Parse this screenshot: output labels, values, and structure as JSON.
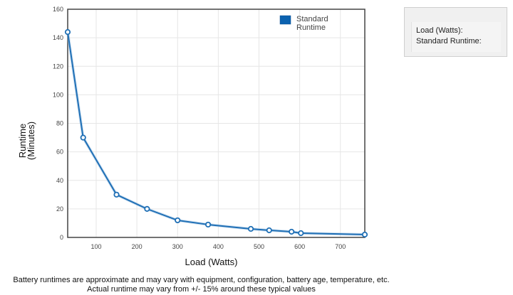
{
  "info_panel": {
    "load_label": "Load (Watts):",
    "runtime_label": "Standard Runtime:"
  },
  "disclaimer": {
    "line1": "Battery runtimes are approximate and may vary with equipment, configuration, battery age, temperature, etc.",
    "line2": "Actual runtime may vary from +/- 15% around these typical values"
  },
  "colors": {
    "series": "#1f6fb5",
    "legend_swatch": "#0b62b0",
    "grid": "#e6e6e6",
    "frame": "#444444"
  },
  "chart_data": {
    "type": "line",
    "title": "",
    "xlabel": "Load (Watts)",
    "ylabel": [
      "Runtime",
      "(Minutes)"
    ],
    "xlim": [
      30,
      760
    ],
    "ylim": [
      0,
      160
    ],
    "x_ticks": [
      100,
      200,
      300,
      400,
      500,
      600,
      700
    ],
    "y_ticks": [
      0,
      20,
      40,
      60,
      80,
      100,
      120,
      140,
      160
    ],
    "grid": true,
    "legend_position": "top-right",
    "series": [
      {
        "name": [
          "Standard",
          "Runtime"
        ],
        "points": [
          {
            "x": 30,
            "y": 144
          },
          {
            "x": 68,
            "y": 70
          },
          {
            "x": 150,
            "y": 30
          },
          {
            "x": 225,
            "y": 20
          },
          {
            "x": 300,
            "y": 12
          },
          {
            "x": 375,
            "y": 9
          },
          {
            "x": 480,
            "y": 6
          },
          {
            "x": 525,
            "y": 5
          },
          {
            "x": 580,
            "y": 4
          },
          {
            "x": 603,
            "y": 3
          },
          {
            "x": 760,
            "y": 2
          }
        ]
      }
    ]
  }
}
